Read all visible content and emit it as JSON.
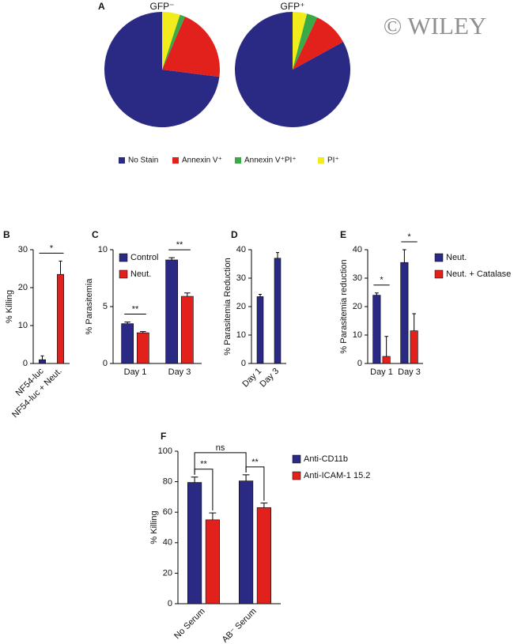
{
  "watermark": "© WILEY",
  "chart_data": [
    {
      "type": "pie",
      "label": "A",
      "categories": [
        "No Stain",
        "Annexin V⁺",
        "Annexin V⁺PI⁺",
        "PI⁺"
      ],
      "colors": [
        "#2a2a84",
        "#e3211c",
        "#3aaa48",
        "#f2ec1c"
      ],
      "series": [
        {
          "name": "GFP⁻",
          "values": [
            73,
            20.5,
            1.5,
            5
          ]
        },
        {
          "name": "GFP⁺",
          "values": [
            83,
            10,
            3,
            4
          ]
        }
      ]
    },
    {
      "type": "bar",
      "label": "B",
      "ylabel": "% Killing",
      "categories": [
        "NF54-luc",
        "NF54-luc + Neut."
      ],
      "values": [
        1,
        23.5
      ],
      "errors": [
        1,
        3.5
      ],
      "colors": [
        "#2a2a84",
        "#e3211c"
      ],
      "ylim": [
        0,
        30
      ],
      "yticks": [
        0,
        10,
        20,
        30
      ],
      "annotations": [
        "*"
      ]
    },
    {
      "type": "bar",
      "label": "C",
      "ylabel": "% Parasitemia",
      "legend": "upper left",
      "categories": [
        "Day 1",
        "Day 3"
      ],
      "series": [
        {
          "name": "Control",
          "color": "#2a2a84",
          "values": [
            3.5,
            9.1
          ],
          "errors": [
            0.15,
            0.2
          ]
        },
        {
          "name": "Neut.",
          "color": "#e3211c",
          "values": [
            2.7,
            5.9
          ],
          "errors": [
            0.1,
            0.3
          ]
        }
      ],
      "ylim": [
        0,
        10
      ],
      "yticks": [
        0,
        5,
        10
      ],
      "annotations": [
        "**",
        "**"
      ]
    },
    {
      "type": "bar",
      "label": "D",
      "ylabel": "% Parasitemia Reduction",
      "categories": [
        "Day 1",
        "Day 3"
      ],
      "values": [
        23.5,
        37
      ],
      "errors": [
        0.8,
        2
      ],
      "colors": [
        "#2a2a84",
        "#2a2a84"
      ],
      "ylim": [
        0,
        40
      ],
      "yticks": [
        0,
        10,
        20,
        30,
        40
      ]
    },
    {
      "type": "bar",
      "label": "E",
      "ylabel": "% Parasitemia reduction",
      "legend": "right",
      "categories": [
        "Day 1",
        "Day 3"
      ],
      "series": [
        {
          "name": "Neut.",
          "color": "#2a2a84",
          "values": [
            24,
            35.5
          ],
          "errors": [
            0.8,
            4.5
          ]
        },
        {
          "name": "Neut. + Catalase",
          "color": "#e3211c",
          "values": [
            2.5,
            11.5
          ],
          "errors": [
            7,
            6
          ]
        }
      ],
      "ylim": [
        0,
        40
      ],
      "yticks": [
        0,
        10,
        20,
        30,
        40
      ],
      "annotations": [
        "*",
        "*"
      ]
    },
    {
      "type": "bar",
      "label": "F",
      "ylabel": "% Killing",
      "legend": "right",
      "categories": [
        "No Serum",
        "AB⁻ Serum"
      ],
      "series": [
        {
          "name": "Anti-CD11b",
          "color": "#2a2a84",
          "values": [
            79.5,
            80.5
          ],
          "errors": [
            3.5,
            4
          ]
        },
        {
          "name": "Anti-ICAM-1 15.2",
          "color": "#e3211c",
          "values": [
            55,
            63
          ],
          "errors": [
            4.5,
            3
          ]
        }
      ],
      "ylim": [
        0,
        100
      ],
      "yticks": [
        0,
        20,
        40,
        60,
        80,
        100
      ],
      "annotations": [
        "**",
        "**",
        "ns"
      ]
    }
  ]
}
